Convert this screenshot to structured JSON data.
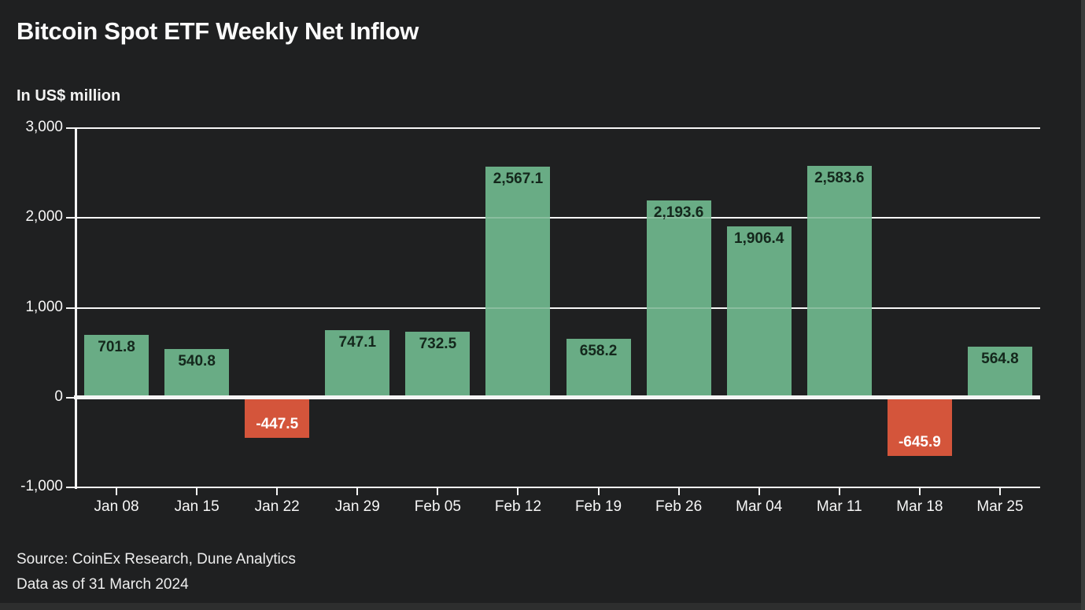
{
  "header": {
    "title": "Bitcoin Spot ETF Weekly Net Inflow",
    "subtitle": "In US$ million"
  },
  "footer": {
    "source": "Source: CoinEx Research, Dune Analytics",
    "data_as_of": "Data as of 31 March 2024"
  },
  "chart_data": {
    "type": "bar",
    "title": "Bitcoin Spot ETF Weekly Net Inflow",
    "unit": "US$ million",
    "categories": [
      "Jan 08",
      "Jan 15",
      "Jan 22",
      "Jan 29",
      "Feb 05",
      "Feb 12",
      "Feb 19",
      "Feb 26",
      "Mar 04",
      "Mar 11",
      "Mar 18",
      "Mar 25"
    ],
    "values": [
      701.8,
      540.8,
      -447.5,
      747.1,
      732.5,
      2567.1,
      658.2,
      2193.6,
      1906.4,
      2583.6,
      -645.9,
      564.8
    ],
    "value_labels": [
      "701.8",
      "540.8",
      "-447.5",
      "747.1",
      "732.5",
      "2,567.1",
      "658.2",
      "2,193.6",
      "1,906.4",
      "2,583.6",
      "-645.9",
      "564.8"
    ],
    "ylim": [
      -1000,
      3000
    ],
    "yticks": [
      3000,
      2000,
      1000,
      0,
      -1000
    ],
    "ytick_labels": [
      "3,000",
      "2,000",
      "1,000",
      "0",
      "-1,000"
    ],
    "grid": "horizontal",
    "legend": "none",
    "colors": {
      "positive": "#69ac85",
      "negative": "#d4553b",
      "grid": "#f5f5f5",
      "background": "#1f2021",
      "text": "#f7f7f7",
      "bar_label_positive": "#14271c",
      "bar_label_negative": "#ffffff"
    }
  }
}
